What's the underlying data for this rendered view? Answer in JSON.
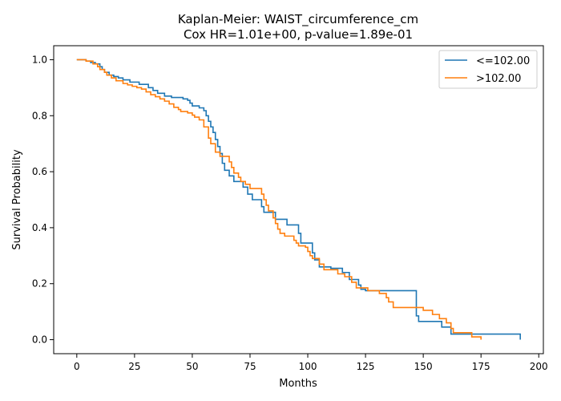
{
  "chart_data": {
    "type": "line",
    "title_line1": "Kaplan-Meier: WAIST_circumference_cm",
    "title_line2": "Cox HR=1.01e+00, p-value=1.89e-01",
    "xlabel": "Months",
    "ylabel": "Survival Probability",
    "xlim": [
      -10,
      202
    ],
    "ylim": [
      -0.05,
      1.05
    ],
    "xticks": [
      0,
      25,
      50,
      75,
      100,
      125,
      150,
      175,
      200
    ],
    "yticks": [
      0.0,
      0.2,
      0.4,
      0.6,
      0.8,
      1.0
    ],
    "grid": false,
    "legend_position": "top-right",
    "series": [
      {
        "name": "<=102.00",
        "color": "#1f77b4",
        "step_points": [
          [
            0,
            1.0
          ],
          [
            4,
            0.995
          ],
          [
            6,
            0.99
          ],
          [
            8,
            0.985
          ],
          [
            10,
            0.975
          ],
          [
            11,
            0.965
          ],
          [
            12,
            0.955
          ],
          [
            14,
            0.945
          ],
          [
            16,
            0.94
          ],
          [
            18,
            0.935
          ],
          [
            20,
            0.928
          ],
          [
            23,
            0.92
          ],
          [
            27,
            0.912
          ],
          [
            31,
            0.9
          ],
          [
            33,
            0.89
          ],
          [
            35,
            0.88
          ],
          [
            38,
            0.87
          ],
          [
            41,
            0.865
          ],
          [
            46,
            0.86
          ],
          [
            48,
            0.855
          ],
          [
            49,
            0.845
          ],
          [
            50,
            0.835
          ],
          [
            53,
            0.828
          ],
          [
            55,
            0.818
          ],
          [
            56,
            0.8
          ],
          [
            57,
            0.78
          ],
          [
            58,
            0.76
          ],
          [
            59,
            0.74
          ],
          [
            60,
            0.715
          ],
          [
            61,
            0.69
          ],
          [
            62,
            0.665
          ],
          [
            63,
            0.63
          ],
          [
            64,
            0.605
          ],
          [
            66,
            0.585
          ],
          [
            68,
            0.565
          ],
          [
            72,
            0.545
          ],
          [
            74,
            0.52
          ],
          [
            76,
            0.5
          ],
          [
            80,
            0.475
          ],
          [
            81,
            0.455
          ],
          [
            86,
            0.43
          ],
          [
            91,
            0.41
          ],
          [
            96,
            0.38
          ],
          [
            97,
            0.345
          ],
          [
            102,
            0.31
          ],
          [
            103,
            0.285
          ],
          [
            105,
            0.26
          ],
          [
            110,
            0.255
          ],
          [
            115,
            0.24
          ],
          [
            118,
            0.215
          ],
          [
            122,
            0.195
          ],
          [
            123,
            0.18
          ],
          [
            125,
            0.175
          ],
          [
            147,
            0.085
          ],
          [
            148,
            0.065
          ],
          [
            158,
            0.045
          ],
          [
            162,
            0.02
          ],
          [
            192,
            0.0
          ]
        ],
        "end_x": 192
      },
      {
        "name": ">102.00",
        "color": "#ff7f0e",
        "step_points": [
          [
            0,
            1.0
          ],
          [
            4,
            0.995
          ],
          [
            7,
            0.985
          ],
          [
            9,
            0.975
          ],
          [
            10,
            0.965
          ],
          [
            12,
            0.955
          ],
          [
            13,
            0.945
          ],
          [
            15,
            0.935
          ],
          [
            17,
            0.925
          ],
          [
            20,
            0.915
          ],
          [
            22,
            0.91
          ],
          [
            24,
            0.905
          ],
          [
            26,
            0.9
          ],
          [
            28,
            0.895
          ],
          [
            30,
            0.885
          ],
          [
            32,
            0.875
          ],
          [
            34,
            0.868
          ],
          [
            36,
            0.86
          ],
          [
            38,
            0.852
          ],
          [
            40,
            0.842
          ],
          [
            42,
            0.83
          ],
          [
            44,
            0.822
          ],
          [
            45,
            0.815
          ],
          [
            48,
            0.81
          ],
          [
            50,
            0.802
          ],
          [
            51,
            0.795
          ],
          [
            53,
            0.785
          ],
          [
            55,
            0.76
          ],
          [
            57,
            0.72
          ],
          [
            58,
            0.7
          ],
          [
            60,
            0.67
          ],
          [
            62,
            0.655
          ],
          [
            66,
            0.635
          ],
          [
            67,
            0.615
          ],
          [
            68,
            0.595
          ],
          [
            70,
            0.58
          ],
          [
            71,
            0.565
          ],
          [
            73,
            0.555
          ],
          [
            75,
            0.54
          ],
          [
            80,
            0.52
          ],
          [
            81,
            0.5
          ],
          [
            82,
            0.48
          ],
          [
            83,
            0.46
          ],
          [
            85,
            0.435
          ],
          [
            86,
            0.415
          ],
          [
            87,
            0.395
          ],
          [
            88,
            0.38
          ],
          [
            90,
            0.37
          ],
          [
            94,
            0.355
          ],
          [
            95,
            0.345
          ],
          [
            96,
            0.335
          ],
          [
            99,
            0.33
          ],
          [
            100,
            0.315
          ],
          [
            101,
            0.3
          ],
          [
            102,
            0.29
          ],
          [
            105,
            0.27
          ],
          [
            107,
            0.25
          ],
          [
            113,
            0.235
          ],
          [
            116,
            0.225
          ],
          [
            119,
            0.205
          ],
          [
            121,
            0.185
          ],
          [
            126,
            0.175
          ],
          [
            131,
            0.165
          ],
          [
            134,
            0.15
          ],
          [
            135,
            0.135
          ],
          [
            137,
            0.115
          ],
          [
            147,
            0.115
          ],
          [
            150,
            0.105
          ],
          [
            154,
            0.09
          ],
          [
            157,
            0.075
          ],
          [
            160,
            0.06
          ],
          [
            162,
            0.04
          ],
          [
            163,
            0.025
          ],
          [
            171,
            0.01
          ],
          [
            175,
            0.0
          ]
        ],
        "end_x": 175
      }
    ]
  }
}
